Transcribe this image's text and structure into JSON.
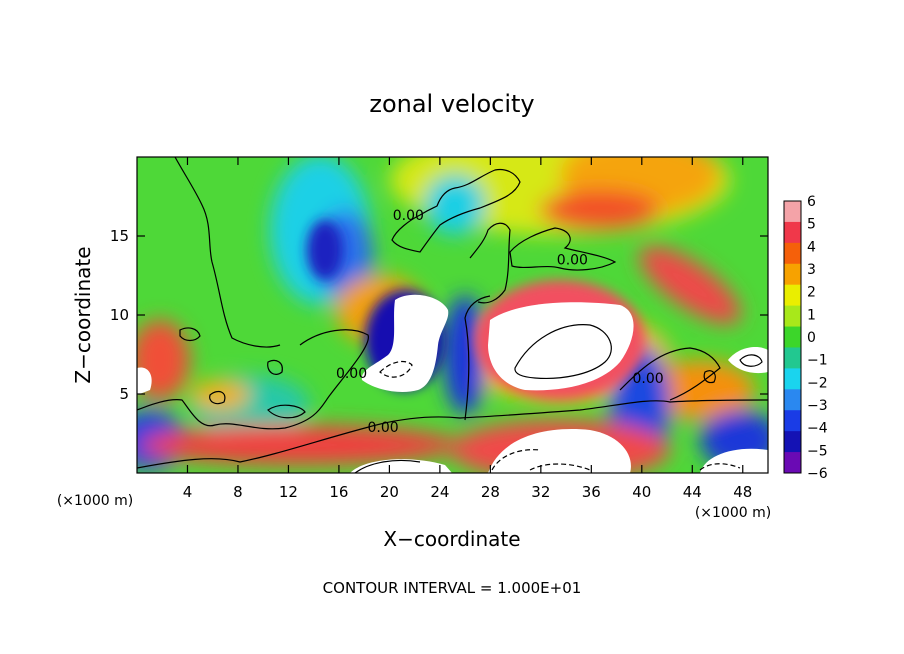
{
  "chart_data": {
    "type": "heatmap",
    "title": "zonal velocity",
    "xlabel": "X−coordinate",
    "ylabel": "Z−coordinate",
    "x_unit_left": "(×1000 m)",
    "x_unit_right": "(×1000 m)",
    "footer": "CONTOUR INTERVAL = 1.000E+01",
    "xlim": [
      0,
      50
    ],
    "ylim": [
      0,
      20
    ],
    "x_ticks": [
      4,
      8,
      12,
      16,
      20,
      24,
      28,
      32,
      36,
      40,
      44,
      48
    ],
    "x_tick_labels": [
      "4",
      "8",
      "12",
      "16",
      "20",
      "24",
      "28",
      "32",
      "36",
      "40",
      "44",
      "48"
    ],
    "y_ticks": [
      5,
      10,
      15
    ],
    "y_tick_labels": [
      "5",
      "10",
      "15"
    ],
    "colorbar": {
      "min": -6,
      "max": 6,
      "labels": [
        "6",
        "5",
        "4",
        "3",
        "2",
        "1",
        "0",
        "−1",
        "−2",
        "−3",
        "−4",
        "−5",
        "−6"
      ],
      "colors": [
        "#f4a3a8",
        "#f0384a",
        "#f5600a",
        "#f7a200",
        "#eaee00",
        "#a8e81a",
        "#3cd62a",
        "#22c890",
        "#1ad4ee",
        "#2a88f0",
        "#1a3ce6",
        "#1412b4",
        "#6a0ab4"
      ]
    },
    "contour_labels": [
      {
        "text": "0.00",
        "x": 17,
        "y": 6.0
      },
      {
        "text": "0.00",
        "x": 19.5,
        "y": 2.6
      },
      {
        "text": "0.00",
        "x": 21.5,
        "y": 16.0
      },
      {
        "text": "0.00",
        "x": 34.5,
        "y": 13.2
      },
      {
        "text": "0.00",
        "x": 40.5,
        "y": 5.7
      }
    ]
  }
}
